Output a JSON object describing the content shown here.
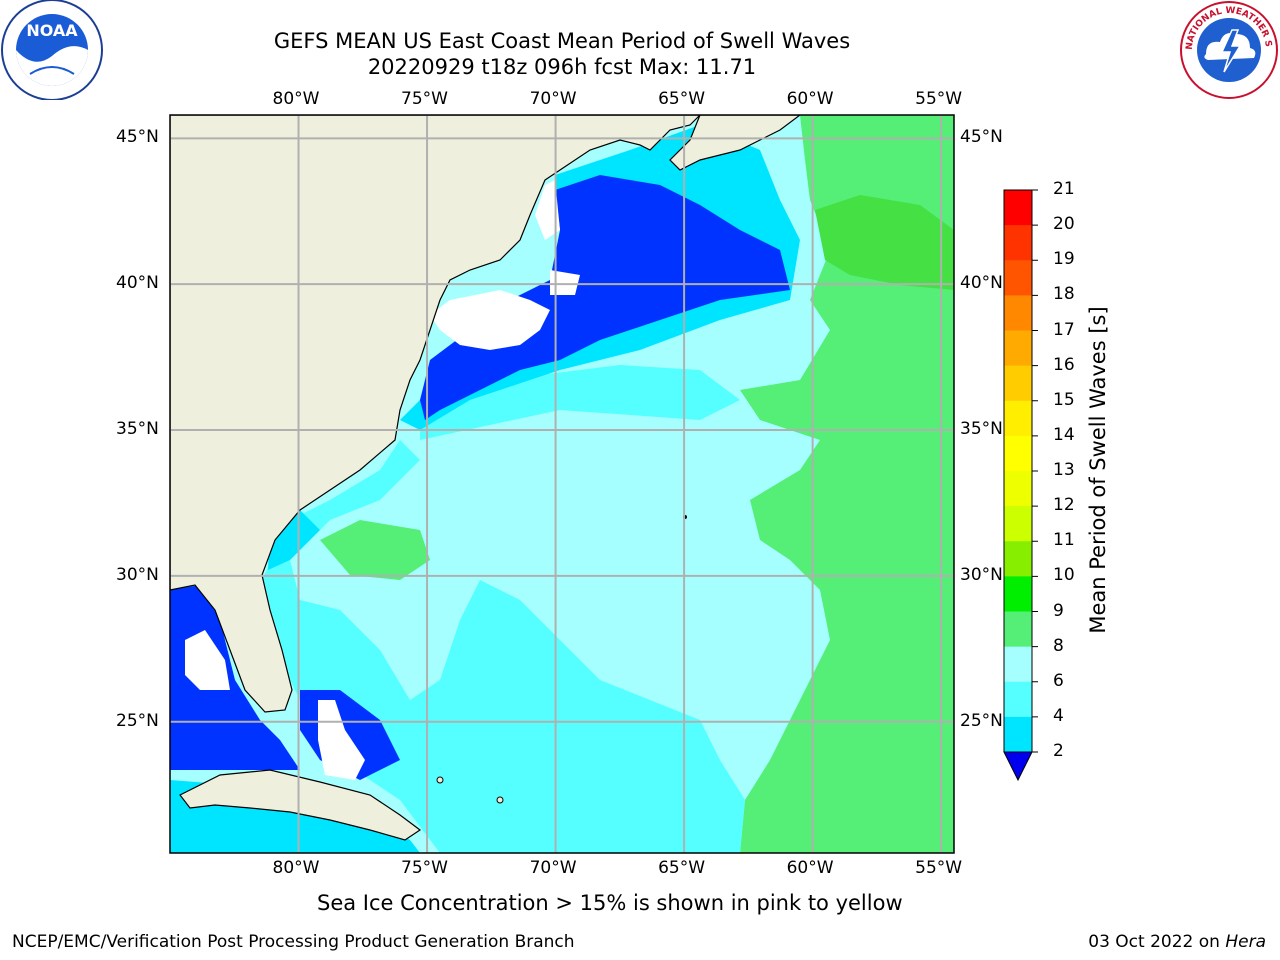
{
  "title_line1": "GEFS MEAN US East Coast Mean Period of Swell Waves",
  "title_line2": "20220929 t18z 096h fcst   Max: 11.71",
  "map": {
    "lon_labels": [
      "80°W",
      "75°W",
      "70°W",
      "65°W",
      "60°W",
      "55°W"
    ],
    "lat_labels": [
      "45°N",
      "40°N",
      "35°N",
      "30°N",
      "25°N"
    ],
    "lon_values": [
      -80,
      -75,
      -70,
      -65,
      -60,
      -55
    ],
    "lat_values": [
      45,
      40,
      35,
      30,
      25
    ],
    "lon_range": [
      -85,
      -54.5
    ],
    "lat_range": [
      20.5,
      45.8
    ],
    "colors": {
      "land": "#efefdd",
      "bins_0_2": "#ffffff",
      "bin_2_4": "#0033ff",
      "bin_4_6": "#00e5ff",
      "bin_6_8": "#55ffff",
      "bin_8_9": "#a6ffff",
      "bin_9_10": "#55ee77",
      "bin_10_11": "#44e044",
      "grid": "#b0b0b0"
    }
  },
  "colorbar": {
    "label": "Mean Period of Swell Waves [s]",
    "ticks": [
      "21",
      "20",
      "19",
      "18",
      "17",
      "16",
      "15",
      "14",
      "13",
      "12",
      "11",
      "10",
      "9",
      "8",
      "6",
      "4",
      "2"
    ],
    "colors": [
      "#ff0000",
      "#ff3300",
      "#ff5500",
      "#ff8800",
      "#ffaa00",
      "#ffcc00",
      "#ffee00",
      "#ffff00",
      "#eeff00",
      "#ccff00",
      "#88ee00",
      "#00ee00",
      "#55ee77",
      "#a6ffff",
      "#55ffff",
      "#00e5ff",
      "#0077ff"
    ],
    "under_color": "#0000ee"
  },
  "footer": {
    "note": "Sea Ice Concentration > 15% is shown in pink to yellow",
    "left": "NCEP/EMC/Verification Post Processing Product Generation Branch",
    "right_prefix": "03 Oct 2022 on ",
    "right_host": "Hera"
  },
  "logos": {
    "noaa_text": "NOAA",
    "nws_text": "NATIONAL WEATHER SERVICE"
  }
}
